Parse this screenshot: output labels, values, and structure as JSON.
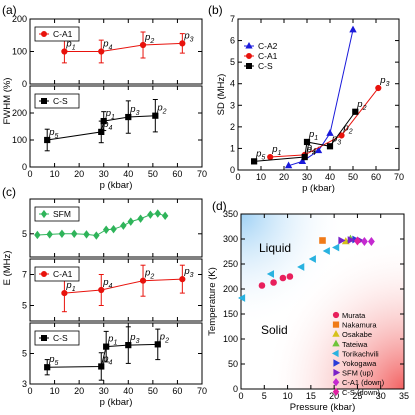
{
  "panel_labels": [
    "(a)",
    "(b)",
    "(c)",
    "(d)"
  ],
  "chart_data": [
    {
      "id": "a-top",
      "type": "scatter",
      "ylabel_shared": "FWHM (%)",
      "xlim": [
        0,
        70
      ],
      "ylim": [
        0,
        200
      ],
      "ytick_labels": [
        "0",
        "100",
        "200"
      ],
      "legend": [
        "C-A1"
      ],
      "series": [
        {
          "name": "C-A1",
          "color": "#e8120c",
          "marker": "circle",
          "line": true,
          "x": [
            14,
            29,
            46,
            62
          ],
          "y": [
            100,
            100,
            120,
            125
          ],
          "err": [
            35,
            35,
            40,
            30
          ],
          "point_labels": [
            "p_1",
            "p_4",
            "p_2",
            "p_3"
          ]
        }
      ]
    },
    {
      "id": "a-bottom",
      "type": "scatter",
      "xlim": [
        0,
        70
      ],
      "ylim": [
        0,
        300
      ],
      "ytick_labels": [
        "0",
        "100",
        "200"
      ],
      "xtick_labels": [
        "0",
        "10",
        "20",
        "30",
        "40",
        "50",
        "60",
        "70"
      ],
      "xlabel": "p (kbar)",
      "legend": [
        "C-S"
      ],
      "series": [
        {
          "name": "C-S",
          "color": "#000000",
          "marker": "square",
          "line": true,
          "x": [
            7,
            29,
            30,
            40,
            51
          ],
          "y": [
            100,
            130,
            170,
            185,
            190
          ],
          "err": [
            40,
            40,
            35,
            60,
            60
          ],
          "point_labels": [
            "p_5",
            "p_4",
            "p_1",
            "p_3",
            "p_2"
          ]
        }
      ]
    },
    {
      "id": "b",
      "type": "line",
      "ylabel": "SD (MHz)",
      "xlabel": "p (kbar)",
      "xlim": [
        0,
        70
      ],
      "ylim": [
        0,
        7
      ],
      "xtick_labels": [
        "0",
        "10",
        "20",
        "30",
        "40",
        "50",
        "60",
        "70"
      ],
      "ytick_labels": [
        "0",
        "1",
        "2",
        "3",
        "4",
        "5",
        "6",
        "7"
      ],
      "legend": [
        "C-A2",
        "C-A1",
        "C-S"
      ],
      "series": [
        {
          "name": "C-A2",
          "color": "#1a1adb",
          "marker": "triangle",
          "line": true,
          "x": [
            22,
            28,
            35,
            40,
            50
          ],
          "y": [
            0.2,
            0.4,
            0.9,
            1.7,
            6.5
          ],
          "point_labels": []
        },
        {
          "name": "C-A1",
          "color": "#e8120c",
          "marker": "circle",
          "line": true,
          "x": [
            14,
            29,
            45,
            61
          ],
          "y": [
            0.6,
            0.7,
            1.6,
            3.8
          ],
          "point_labels": [
            "p_1",
            "p_4",
            "p_2",
            "p_3"
          ]
        },
        {
          "name": "C-S",
          "color": "#000000",
          "marker": "square",
          "line": true,
          "x": [
            7,
            29,
            30,
            40,
            51
          ],
          "y": [
            0.4,
            0.6,
            1.3,
            1.1,
            2.7
          ],
          "point_labels": [
            "p_5",
            "p_4",
            "p_1",
            "p_3",
            "p_2"
          ]
        }
      ]
    },
    {
      "id": "c-top",
      "type": "scatter",
      "ylabel_shared": "E (MHz)",
      "xlim": [
        0,
        70
      ],
      "ylim": [
        3,
        8
      ],
      "ytick_labels": [
        "5"
      ],
      "legend": [
        "SFM"
      ],
      "series": [
        {
          "name": "SFM",
          "color": "#2fb45a",
          "marker": "diamond",
          "line": true,
          "x": [
            3,
            8,
            13,
            18,
            23,
            27,
            31,
            34,
            38,
            41,
            45,
            49,
            52,
            55
          ],
          "y": [
            4.9,
            4.95,
            5.0,
            5.0,
            4.95,
            4.85,
            5.35,
            5.4,
            5.7,
            6.05,
            6.3,
            6.65,
            6.75,
            6.55
          ],
          "point_labels": []
        }
      ]
    },
    {
      "id": "c-middle",
      "type": "scatter",
      "xlim": [
        0,
        70
      ],
      "ylim": [
        4,
        8
      ],
      "ytick_labels": [
        "5",
        "7"
      ],
      "legend": [
        "C-A1"
      ],
      "series": [
        {
          "name": "C-A1",
          "color": "#e8120c",
          "marker": "circle",
          "line": true,
          "x": [
            14,
            29,
            46,
            62
          ],
          "y": [
            5.8,
            6.0,
            6.6,
            6.7
          ],
          "err": [
            1.2,
            1.0,
            1.0,
            0.9
          ],
          "point_labels": [
            "p_1",
            "p_4",
            "p_2",
            "p_3"
          ]
        }
      ]
    },
    {
      "id": "c-bottom",
      "type": "scatter",
      "xlim": [
        0,
        70
      ],
      "ylim": [
        3,
        7
      ],
      "ytick_labels": [
        "3",
        "5"
      ],
      "xtick_labels": [
        "0",
        "10",
        "20",
        "30",
        "40",
        "50",
        "60",
        "70"
      ],
      "xlabel": "p (kbar)",
      "legend": [
        "C-S"
      ],
      "series": [
        {
          "name": "C-S",
          "color": "#000000",
          "marker": "square",
          "line": true,
          "x": [
            7,
            29,
            31,
            40,
            52
          ],
          "y": [
            4.1,
            4.15,
            5.45,
            5.55,
            5.6
          ],
          "err": [
            0.5,
            0.9,
            1.0,
            1.2,
            1.0
          ],
          "point_labels": [
            "p_5",
            "p_4",
            "p_1",
            "p_3",
            "p_2"
          ]
        }
      ]
    },
    {
      "id": "d",
      "type": "scatter",
      "xlabel": "Pressure (kbar)",
      "ylabel": "Temperature (K)",
      "xlim": [
        0,
        35
      ],
      "ylim": [
        0,
        350
      ],
      "xtick_labels": [
        "0",
        "5",
        "10",
        "15",
        "20",
        "25",
        "30",
        "35"
      ],
      "ytick_labels": [
        "0",
        "50",
        "100",
        "150",
        "200",
        "250",
        "300",
        "350"
      ],
      "regions": [
        "Liquid",
        "Solid"
      ],
      "legend": [
        "Murata",
        "Nakamura",
        "Osakabe",
        "Tateiwa",
        "Torikachvili",
        "Yokogawa",
        "SFM (up)",
        "C-A1 (down)",
        "C-S (down)"
      ],
      "series": [
        {
          "name": "Murata",
          "color": "#e8205c",
          "marker": "circle",
          "x": [
            4.5,
            7,
            9,
            10.5
          ],
          "y": [
            207,
            213,
            222,
            225
          ]
        },
        {
          "name": "Nakamura",
          "color": "#f07a18",
          "marker": "square",
          "x": [
            17.5
          ],
          "y": [
            297
          ]
        },
        {
          "name": "Osakabe",
          "color": "#d6c21a",
          "marker": "triangle",
          "x": [
            22.5
          ],
          "y": [
            295
          ]
        },
        {
          "name": "Tateiwa",
          "color": "#6fc43a",
          "marker": "triangle",
          "x": [
            23.5
          ],
          "y": [
            300
          ]
        },
        {
          "name": "Torikachvili",
          "color": "#29b2e0",
          "marker": "triangle-left",
          "x": [
            0.3,
            6.5,
            13,
            15.5,
            18.5,
            20.5
          ],
          "y": [
            182,
            230,
            244,
            260,
            276,
            283
          ]
        },
        {
          "name": "Yokogawa",
          "color": "#2a3cd8",
          "marker": "triangle-right",
          "x": [
            24.5
          ],
          "y": [
            299
          ]
        },
        {
          "name": "SFM (up)",
          "color": "#7a22c8",
          "marker": "triangle-right",
          "x": [
            21.5,
            23.5,
            25.5
          ],
          "y": [
            297,
            298,
            297
          ]
        },
        {
          "name": "C-A1 (down)",
          "color": "#c42ad0",
          "marker": "diamond",
          "x": [
            26.5,
            28
          ],
          "y": [
            295,
            295
          ]
        },
        {
          "name": "C-S (down)",
          "color": "#e020a0",
          "marker": "diamond",
          "x": [
            25
          ],
          "y": [
            296
          ]
        }
      ]
    }
  ]
}
